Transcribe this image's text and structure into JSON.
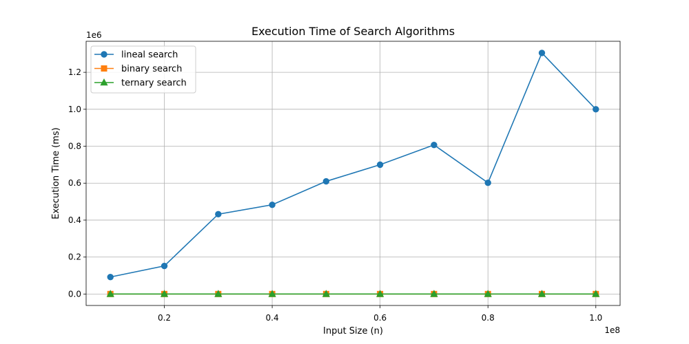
{
  "chart_data": {
    "type": "line",
    "title": "Execution Time of Search Algorithms",
    "xlabel": "Input Size (n)",
    "ylabel": "Execution Time (ms)",
    "x_offset_label": "1e8",
    "y_offset_label": "1e6",
    "xlim": [
      0.055,
      1.045
    ],
    "ylim": [
      -0.062,
      1.368
    ],
    "x_ticks": [
      0.2,
      0.4,
      0.6,
      0.8,
      1.0
    ],
    "x_tick_labels": [
      "0.2",
      "0.4",
      "0.6",
      "0.8",
      "1.0"
    ],
    "y_ticks": [
      0.0,
      0.2,
      0.4,
      0.6,
      0.8,
      1.0,
      1.2
    ],
    "y_tick_labels": [
      "0.0",
      "0.2",
      "0.4",
      "0.6",
      "0.8",
      "1.0",
      "1.2"
    ],
    "grid": true,
    "legend_position": "top-left",
    "x": [
      0.1,
      0.2,
      0.3,
      0.4,
      0.5,
      0.6,
      0.7,
      0.8,
      0.9,
      1.0
    ],
    "series": [
      {
        "name": "lineal search",
        "color": "#1f77b4",
        "marker": "circle",
        "values": [
          0.092,
          0.152,
          0.432,
          0.483,
          0.61,
          0.7,
          0.807,
          0.602,
          1.305,
          1.0
        ]
      },
      {
        "name": "binary search",
        "color": "#ff7f0e",
        "marker": "square",
        "values": [
          0.0001,
          0.0001,
          0.0001,
          0.0001,
          0.0001,
          0.0001,
          0.0001,
          0.0001,
          0.0001,
          0.0001
        ]
      },
      {
        "name": "ternary search",
        "color": "#2ca02c",
        "marker": "triangle",
        "values": [
          0.0001,
          0.0001,
          0.0001,
          0.0001,
          0.0001,
          0.0001,
          0.0001,
          0.0001,
          0.0001,
          0.0001
        ]
      }
    ]
  }
}
